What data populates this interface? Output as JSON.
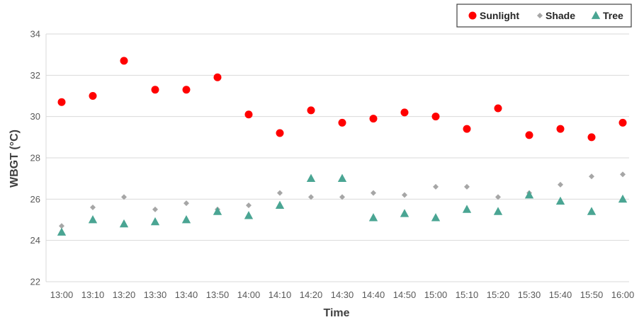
{
  "chart_data": {
    "type": "scatter",
    "title": "",
    "xlabel": "Time",
    "ylabel": "WBGT (°C)",
    "ylim": [
      22,
      34
    ],
    "yticks": [
      "22",
      "24",
      "26",
      "28",
      "30",
      "32",
      "34"
    ],
    "grid": "horizontal",
    "legend_position": "top-right",
    "categories": [
      "13:00",
      "13:10",
      "13:20",
      "13:30",
      "13:40",
      "13:50",
      "14:00",
      "14:10",
      "14:20",
      "14:30",
      "14:40",
      "14:50",
      "15:00",
      "15:10",
      "15:20",
      "15:30",
      "15:40",
      "15:50",
      "16:00"
    ],
    "series": [
      {
        "name": "Sunlight",
        "marker": "circle",
        "color": "#ff0000",
        "values": [
          30.7,
          31.0,
          32.7,
          31.3,
          31.3,
          31.9,
          30.1,
          29.2,
          30.3,
          29.7,
          29.9,
          30.2,
          30.0,
          29.4,
          30.4,
          29.1,
          29.4,
          29.0,
          29.7
        ]
      },
      {
        "name": "Shade",
        "marker": "diamond",
        "color": "#a6a6a6",
        "values": [
          24.7,
          25.6,
          26.1,
          25.5,
          25.8,
          25.5,
          25.7,
          26.3,
          26.1,
          26.1,
          26.3,
          26.2,
          26.6,
          26.6,
          26.1,
          26.3,
          26.7,
          27.1,
          27.2
        ]
      },
      {
        "name": "Tree",
        "marker": "triangle",
        "color": "#4aa593",
        "values": [
          24.4,
          25.0,
          24.8,
          24.9,
          25.0,
          25.4,
          25.2,
          25.7,
          27.0,
          27.0,
          25.1,
          25.3,
          25.1,
          25.5,
          25.4,
          26.2,
          25.9,
          25.4,
          26.0
        ]
      }
    ]
  }
}
